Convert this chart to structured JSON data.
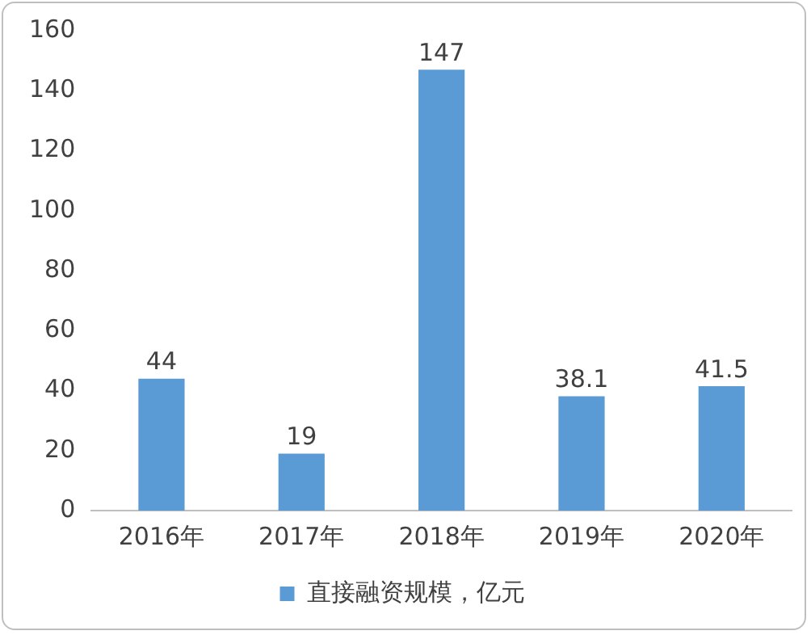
{
  "chart_data": {
    "type": "bar",
    "categories": [
      "2016年",
      "2017年",
      "2018年",
      "2019年",
      "2020年"
    ],
    "series": [
      {
        "name": "直接融资规模，亿元",
        "color": "#5b9bd5",
        "values": [
          44,
          19,
          147,
          38.1,
          41.5
        ]
      }
    ],
    "ylim": [
      0,
      160
    ],
    "yticks": [
      0,
      20,
      40,
      60,
      80,
      100,
      120,
      140,
      160
    ],
    "grid": false,
    "legend": "bottom",
    "data_labels": true
  }
}
